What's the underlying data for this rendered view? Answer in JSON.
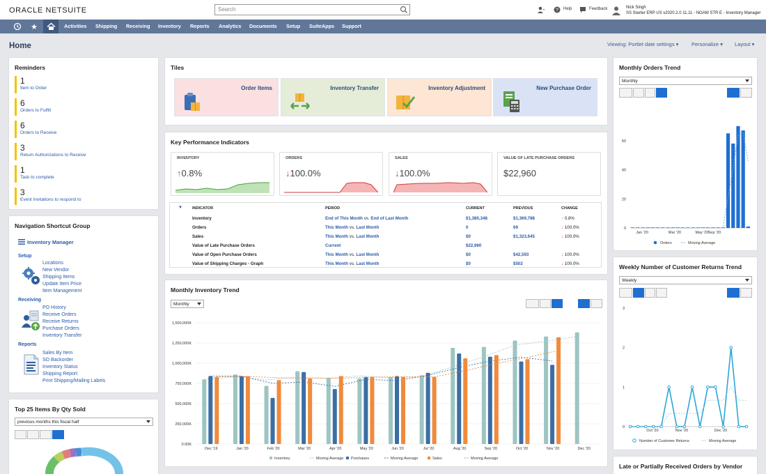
{
  "header": {
    "logo_prefix": "ORACLE ",
    "logo_main": "NETSUITE",
    "search_placeholder": "Search",
    "help_label": "Help",
    "feedback_label": "Feedback",
    "user_name": "Nick Singh",
    "user_role": "SS Starter ERP US v2020.2.0 11.11 - NOAM STR E - Inventory Manager"
  },
  "nav": {
    "items": [
      "Activities",
      "Shipping",
      "Receiving",
      "Inventory",
      "Reports",
      "Analytics",
      "Documents",
      "Setup",
      "SuiteApps",
      "Support"
    ]
  },
  "page": {
    "title": "Home",
    "viewing_link": "Viewing: Portlet date settings",
    "personalize_link": "Personalize",
    "layout_link": "Layout"
  },
  "reminders": {
    "title": "Reminders",
    "items": [
      {
        "count": "1",
        "label": "Item to Order"
      },
      {
        "count": "6",
        "label": "Orders to Fulfill"
      },
      {
        "count": "6",
        "label": "Orders to Receive"
      },
      {
        "count": "3",
        "label": "Return Authorizations to Receive"
      },
      {
        "count": "1",
        "label": "Task to complete"
      },
      {
        "count": "3",
        "label": "Event Invitations to respond to"
      }
    ]
  },
  "shortcuts": {
    "title": "Navigation Shortcut Group",
    "center_link": "Inventory Manager",
    "setup_title": "Setup",
    "setup_links": [
      "Locations",
      "New Vendor",
      "Shipping Items",
      "Update Item Price",
      "Item Management"
    ],
    "receiving_title": "Receiving",
    "receiving_links": [
      "PO History",
      "Receive Orders",
      "Receive Returns",
      "Purchase Orders",
      "Inventory Transfer"
    ],
    "reports_title": "Reports",
    "reports_links": [
      "Sales By Item",
      "SO Backorder",
      "Inventory Status",
      "Shipping Report",
      "Print Shipping/Mailing Labels"
    ]
  },
  "top25": {
    "title": "Top 25 Items By Qty Sold",
    "period": "previous months this fiscal half"
  },
  "tiles": {
    "title": "Tiles",
    "items": [
      {
        "label": "Order Items",
        "color": "#fbe0e1"
      },
      {
        "label": "Inventory Transfer",
        "color": "#e5edd9"
      },
      {
        "label": "Inventory Adjustment",
        "color": "#fde6d3"
      },
      {
        "label": "New Purchase Order",
        "color": "#d9e3f5"
      }
    ]
  },
  "kpi": {
    "title": "Key Performance Indicators",
    "cards": [
      {
        "header": "INVENTORY",
        "value": "0.8%",
        "trend": "up"
      },
      {
        "header": "ORDERS",
        "value": "100.0%",
        "trend": "down"
      },
      {
        "header": "SALES",
        "value": "100.0%",
        "trend": "down"
      },
      {
        "header": "VALUE OF LATE PURCHASE ORDERS",
        "value": "$22,960",
        "trend": "none"
      }
    ],
    "columns": [
      "INDICATOR",
      "PERIOD",
      "CURRENT",
      "PREVIOUS",
      "CHANGE"
    ],
    "rows": [
      {
        "indicator": "Inventory",
        "period_a": "End of This Month",
        "vs": "vs.",
        "period_b": "End of Last Month",
        "current": "$1,380,348",
        "previous": "$1,369,788",
        "change": "0.8%",
        "dir": "up"
      },
      {
        "indicator": "Orders",
        "period_a": "This Month",
        "vs": "vs.",
        "period_b": "Last Month",
        "current": "0",
        "previous": "69",
        "change": "100.0%",
        "dir": "down"
      },
      {
        "indicator": "Sales",
        "period_a": "This Month",
        "vs": "vs.",
        "period_b": "Last Month",
        "current": "$0",
        "previous": "$1,323,645",
        "change": "100.0%",
        "dir": "down"
      },
      {
        "indicator": "Value of Late Purchase Orders",
        "period_a": "Current",
        "vs": "",
        "period_b": "",
        "current": "$22,960",
        "previous": "",
        "change": "",
        "dir": ""
      },
      {
        "indicator": "Value of Open Purchase Orders",
        "period_a": "This Month",
        "vs": "vs.",
        "period_b": "Last Month",
        "current": "$0",
        "previous": "$42,593",
        "change": "100.0%",
        "dir": "down"
      },
      {
        "indicator": "Value of Shipping Charges - Graph",
        "period_a": "This Month",
        "vs": "vs.",
        "period_b": "Last Month",
        "current": "$0",
        "previous": "$502",
        "change": "100.0%",
        "dir": "down"
      }
    ]
  },
  "monthly_inventory": {
    "title": "Monthly Inventory Trend",
    "period": "Monthly"
  },
  "monthly_orders": {
    "title": "Monthly Orders Trend",
    "period": "Monthly"
  },
  "weekly_returns": {
    "title": "Weekly Number of Customer Returns Trend",
    "period": "Weekly"
  },
  "late_orders": {
    "title": "Late or Partially Received Orders by Vendor"
  },
  "colors": {
    "nav": "#607799",
    "accent_blue": "#1f6fd1",
    "reminder_bar": "#f2c200",
    "inventory": "#9cc5c3",
    "purchases": "#3b6ea5",
    "sales": "#f08a3c"
  },
  "chart_data": [
    {
      "type": "bar",
      "title": "Monthly Inventory Trend",
      "categories": [
        "Dec '19",
        "Jan '20",
        "Feb '20",
        "Mar '20",
        "Apr '20",
        "May '20",
        "Jun '20",
        "Jul '20",
        "Aug '20",
        "Sep '20",
        "Oct '20",
        "Nov '20",
        "Dec '20"
      ],
      "ylim": [
        0,
        1500000
      ],
      "yticks": [
        "0.00K",
        "250,000K",
        "500,000K",
        "750,000K",
        "1,000,000K",
        "1,250,000K",
        "1,500,000K"
      ],
      "legend": [
        "Inventory",
        "Moving Average",
        "Purchases",
        "Moving Average",
        "Sales",
        "Moving Average"
      ],
      "series": [
        {
          "name": "Inventory",
          "values": [
            800000,
            860000,
            720000,
            900000,
            820000,
            810000,
            830000,
            850000,
            1190000,
            1200000,
            1280000,
            1330000,
            1380000
          ]
        },
        {
          "name": "Purchases",
          "values": [
            840000,
            840000,
            570000,
            890000,
            680000,
            830000,
            840000,
            880000,
            1120000,
            1080000,
            1020000,
            980000,
            0
          ]
        },
        {
          "name": "Sales",
          "values": [
            830000,
            840000,
            790000,
            810000,
            840000,
            830000,
            830000,
            830000,
            1060000,
            1100000,
            1050000,
            1320000,
            0
          ]
        }
      ]
    },
    {
      "type": "bar",
      "title": "Monthly Orders Trend",
      "x_tick_labels": [
        "Jan '20",
        "Mar '20",
        "May '20",
        "Sep '20"
      ],
      "ylim": [
        0,
        80
      ],
      "yticks": [
        "0",
        "20",
        "40",
        "60"
      ],
      "legend": [
        "Orders",
        "Moving Average"
      ],
      "series": [
        {
          "name": "Orders",
          "values": [
            0,
            0,
            0,
            0,
            0,
            0,
            0,
            0,
            0,
            0,
            0,
            0,
            0,
            0,
            0,
            0,
            0,
            0,
            0,
            65,
            58,
            70,
            67,
            1
          ]
        }
      ]
    },
    {
      "type": "line",
      "title": "Weekly Number of Customer Returns Trend",
      "x_tick_labels": [
        "Oct '20",
        "Nov '20",
        "Dec '20"
      ],
      "ylim": [
        0,
        3
      ],
      "yticks": [
        "0",
        "1",
        "2",
        "3"
      ],
      "legend": [
        "Number of Customer Returns",
        "Moving Average"
      ],
      "series": [
        {
          "name": "Number of Customer Returns",
          "values": [
            0,
            0,
            0,
            0,
            0,
            1,
            0,
            0,
            1,
            0,
            1,
            1,
            0,
            2,
            0,
            0
          ]
        }
      ]
    }
  ]
}
